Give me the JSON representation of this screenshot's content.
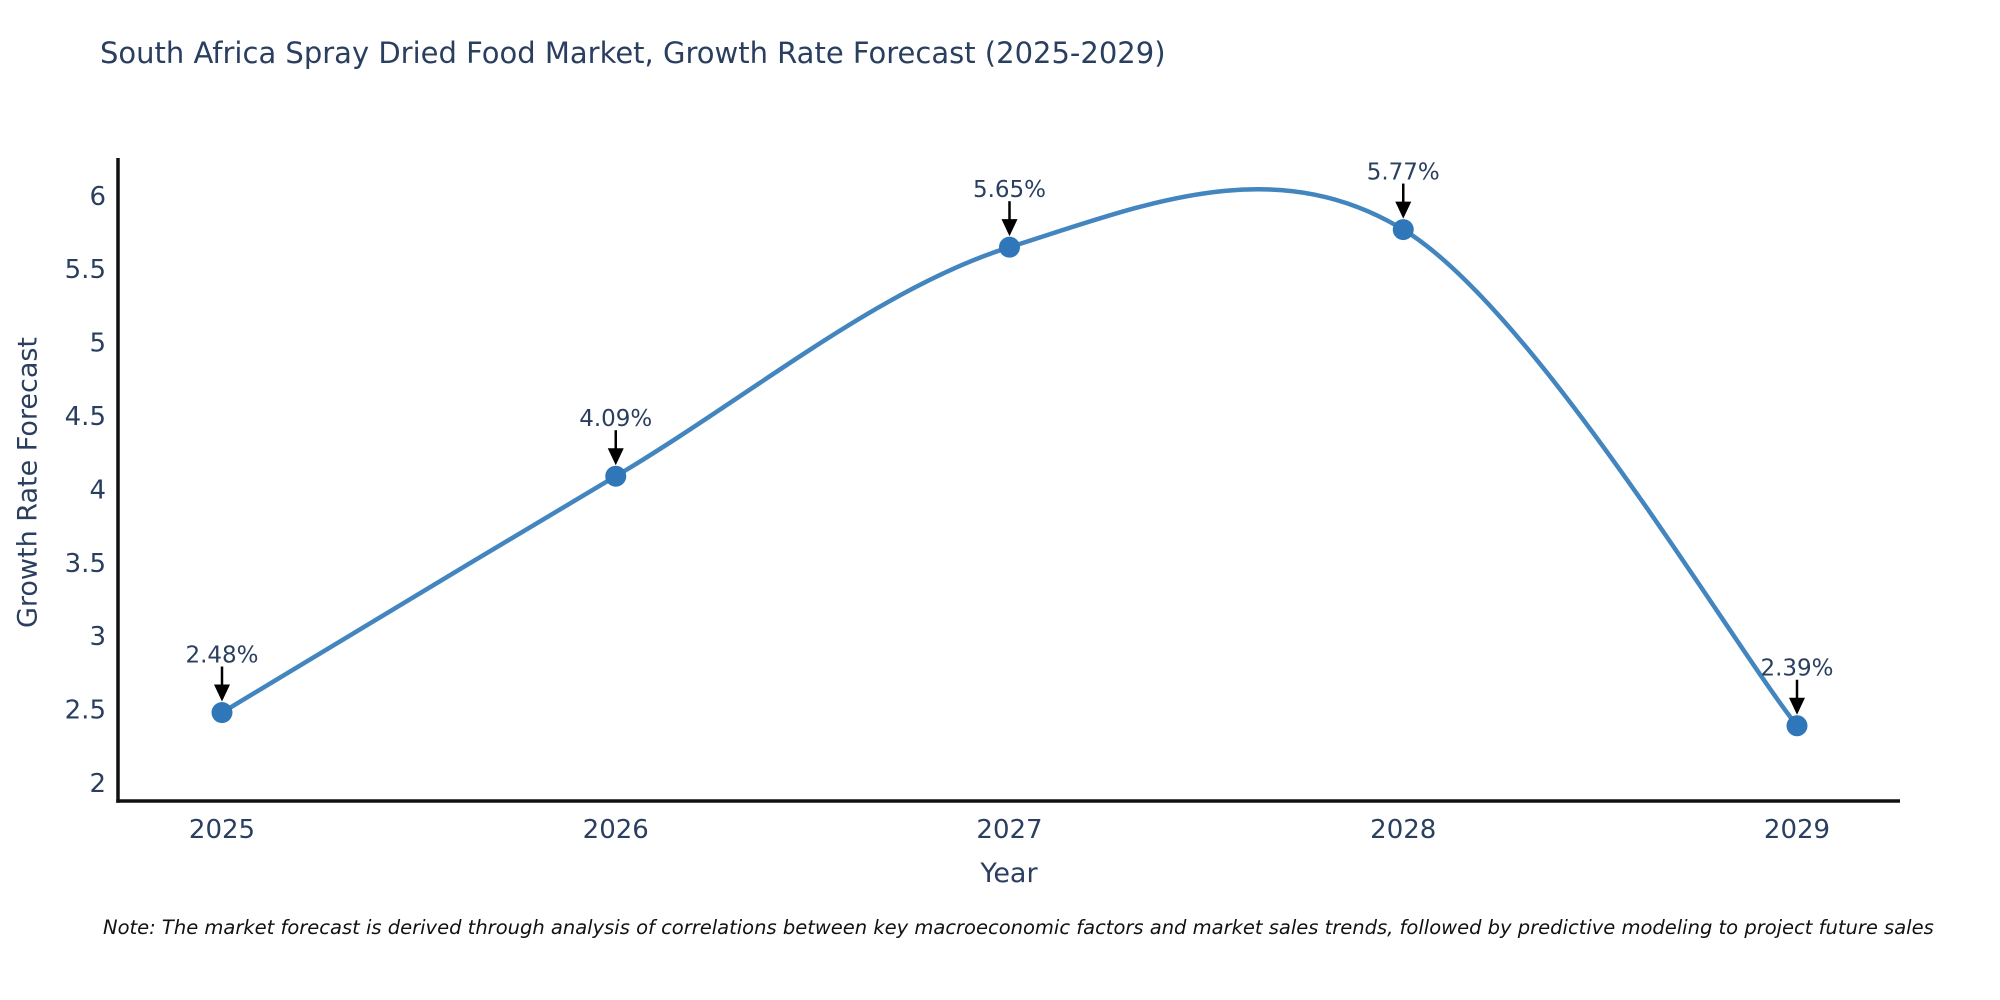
{
  "title": "South Africa Spray Dried Food Market, Growth Rate Forecast (2025-2029)",
  "note": "Note: The market forecast is derived through analysis of correlations between key macroeconomic factors and market sales trends, followed by predictive modeling to project future sales",
  "chart_data": {
    "type": "line",
    "title": "South Africa Spray Dried Food Market, Growth Rate Forecast (2025-2029)",
    "xlabel": "Year",
    "ylabel": "Growth Rate Forecast",
    "x": [
      "2025",
      "2026",
      "2027",
      "2028",
      "2029"
    ],
    "values": [
      2.48,
      4.09,
      5.65,
      5.77,
      2.39
    ],
    "point_labels": [
      "2.48%",
      "4.09%",
      "5.65%",
      "5.77%",
      "2.39%"
    ],
    "yticks": [
      2,
      2.5,
      3,
      3.5,
      4,
      4.5,
      5,
      5.5,
      6
    ],
    "ylim": [
      1.88,
      6.24
    ],
    "line_shape": "spline",
    "grid": false,
    "legend_position": "none",
    "line_color": "#4385bf",
    "marker_color": "#2f77b8",
    "arrow_color": "#000000",
    "axis_color": "#111111",
    "text_color": "#2a3f5f"
  }
}
